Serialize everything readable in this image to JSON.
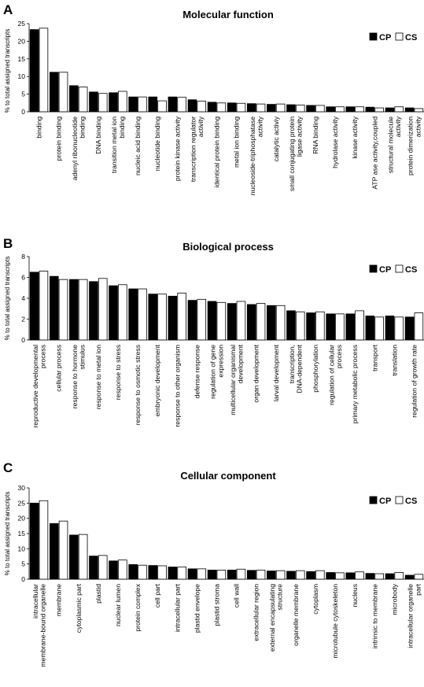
{
  "panels": [
    {
      "letter": "A",
      "chart_data": {
        "type": "bar",
        "title": "Molecular function",
        "ylabel": "% to total assigned transcripts",
        "xlabel": "",
        "ylim": [
          0,
          25
        ],
        "yticks": [
          0,
          5,
          10,
          15,
          20,
          25
        ],
        "grid": false,
        "legend_position": "top-right",
        "categories": [
          "binding",
          "protein binding",
          "adenyl ribonucleotide binding",
          "DNA binding",
          "transition metal ion binding",
          "nucleic acid binding",
          "nucleotide binding",
          "protein kinase activity",
          "transcription regulator activity",
          "identical protein binding",
          "metal ion binding",
          "nucleoside-triphosphatase activity",
          "catalytic activiy",
          "small conjugating protein ligase activity",
          "RNA binding",
          "hydrolase activity",
          "kinase activity",
          "ATP ase activity,coupled",
          "structural molecule activity",
          "protein dimerization activity"
        ],
        "series": [
          {
            "name": "CP",
            "values": [
              23.3,
              11.2,
              7.4,
              5.6,
              5.4,
              4.2,
              4.2,
              4.2,
              3.4,
              2.7,
              2.5,
              2.3,
              2.1,
              2.0,
              1.8,
              1.4,
              1.4,
              1.3,
              1.1,
              1.1
            ]
          },
          {
            "name": "CS",
            "values": [
              23.7,
              11.2,
              7.0,
              5.2,
              5.8,
              4.2,
              3.1,
              4.1,
              3.0,
              2.5,
              2.4,
              2.2,
              2.2,
              1.9,
              1.8,
              1.4,
              1.4,
              1.1,
              1.4,
              0.9
            ]
          }
        ]
      }
    },
    {
      "letter": "B",
      "chart_data": {
        "type": "bar",
        "title": "Biological process",
        "ylabel": "% to total assigned transcripts",
        "xlabel": "",
        "ylim": [
          0,
          8
        ],
        "yticks": [
          0,
          2,
          4,
          6,
          8
        ],
        "grid": false,
        "legend_position": "top-right",
        "categories": [
          "reproductive developmental process",
          "cellular process",
          "response to hormone stimulus",
          "response to metal ion",
          "response to stress",
          "response to osmotic stress",
          "embryonic development",
          "response to other organism",
          "defense response",
          "regulation of gene expression",
          "multicellular organismal development",
          "organ development",
          "larval development",
          "transcription, DNA-dependent",
          "phosphorylation",
          "regulation of cellular process",
          "primary metabolic process",
          "transport",
          "translation",
          "regulation of growth rate"
        ],
        "series": [
          {
            "name": "CP",
            "values": [
              6.5,
              6.1,
              5.8,
              5.6,
              5.2,
              4.9,
              4.4,
              4.2,
              3.8,
              3.7,
              3.5,
              3.4,
              3.3,
              2.8,
              2.6,
              2.5,
              2.5,
              2.3,
              2.3,
              2.2
            ]
          },
          {
            "name": "CS",
            "values": [
              6.6,
              5.8,
              5.8,
              5.9,
              5.3,
              4.9,
              4.4,
              4.5,
              3.9,
              3.6,
              3.7,
              3.5,
              3.3,
              2.7,
              2.7,
              2.5,
              2.8,
              2.2,
              2.2,
              2.6
            ]
          }
        ]
      }
    },
    {
      "letter": "C",
      "chart_data": {
        "type": "bar",
        "title": "Cellular component",
        "ylabel": "% to total assigned transcripts",
        "xlabel": "",
        "ylim": [
          0,
          30
        ],
        "yticks": [
          0,
          5,
          10,
          15,
          20,
          25,
          30
        ],
        "grid": false,
        "legend_position": "top-right",
        "categories": [
          "intracellular membrane-bound organelle",
          "membrane",
          "cytoplasmic part",
          "plastid",
          "nuclear lumen",
          "protein complex",
          "cell part",
          "intracellular part",
          "plastid envelope",
          "plastid stroma",
          "cell wall",
          "extracellular region",
          "external encapsulating structure",
          "organelle membrane",
          "cytoplasm",
          "microtubule cytoskeleton",
          "nucleus",
          "intrinsic to membrane",
          "microbody",
          "intracellular organelle part"
        ],
        "series": [
          {
            "name": "CP",
            "values": [
              25.0,
              18.3,
              14.5,
              7.6,
              6.0,
              4.8,
              4.5,
              4.0,
              3.4,
              3.0,
              3.0,
              2.9,
              2.7,
              2.6,
              2.5,
              2.2,
              2.1,
              1.9,
              1.8,
              1.3
            ]
          },
          {
            "name": "CS",
            "values": [
              25.8,
              19.1,
              14.7,
              7.8,
              6.3,
              4.6,
              4.4,
              4.0,
              3.4,
              3.0,
              3.3,
              3.0,
              2.8,
              2.8,
              2.8,
              2.1,
              2.4,
              1.8,
              2.2,
              1.6
            ]
          }
        ]
      }
    }
  ]
}
